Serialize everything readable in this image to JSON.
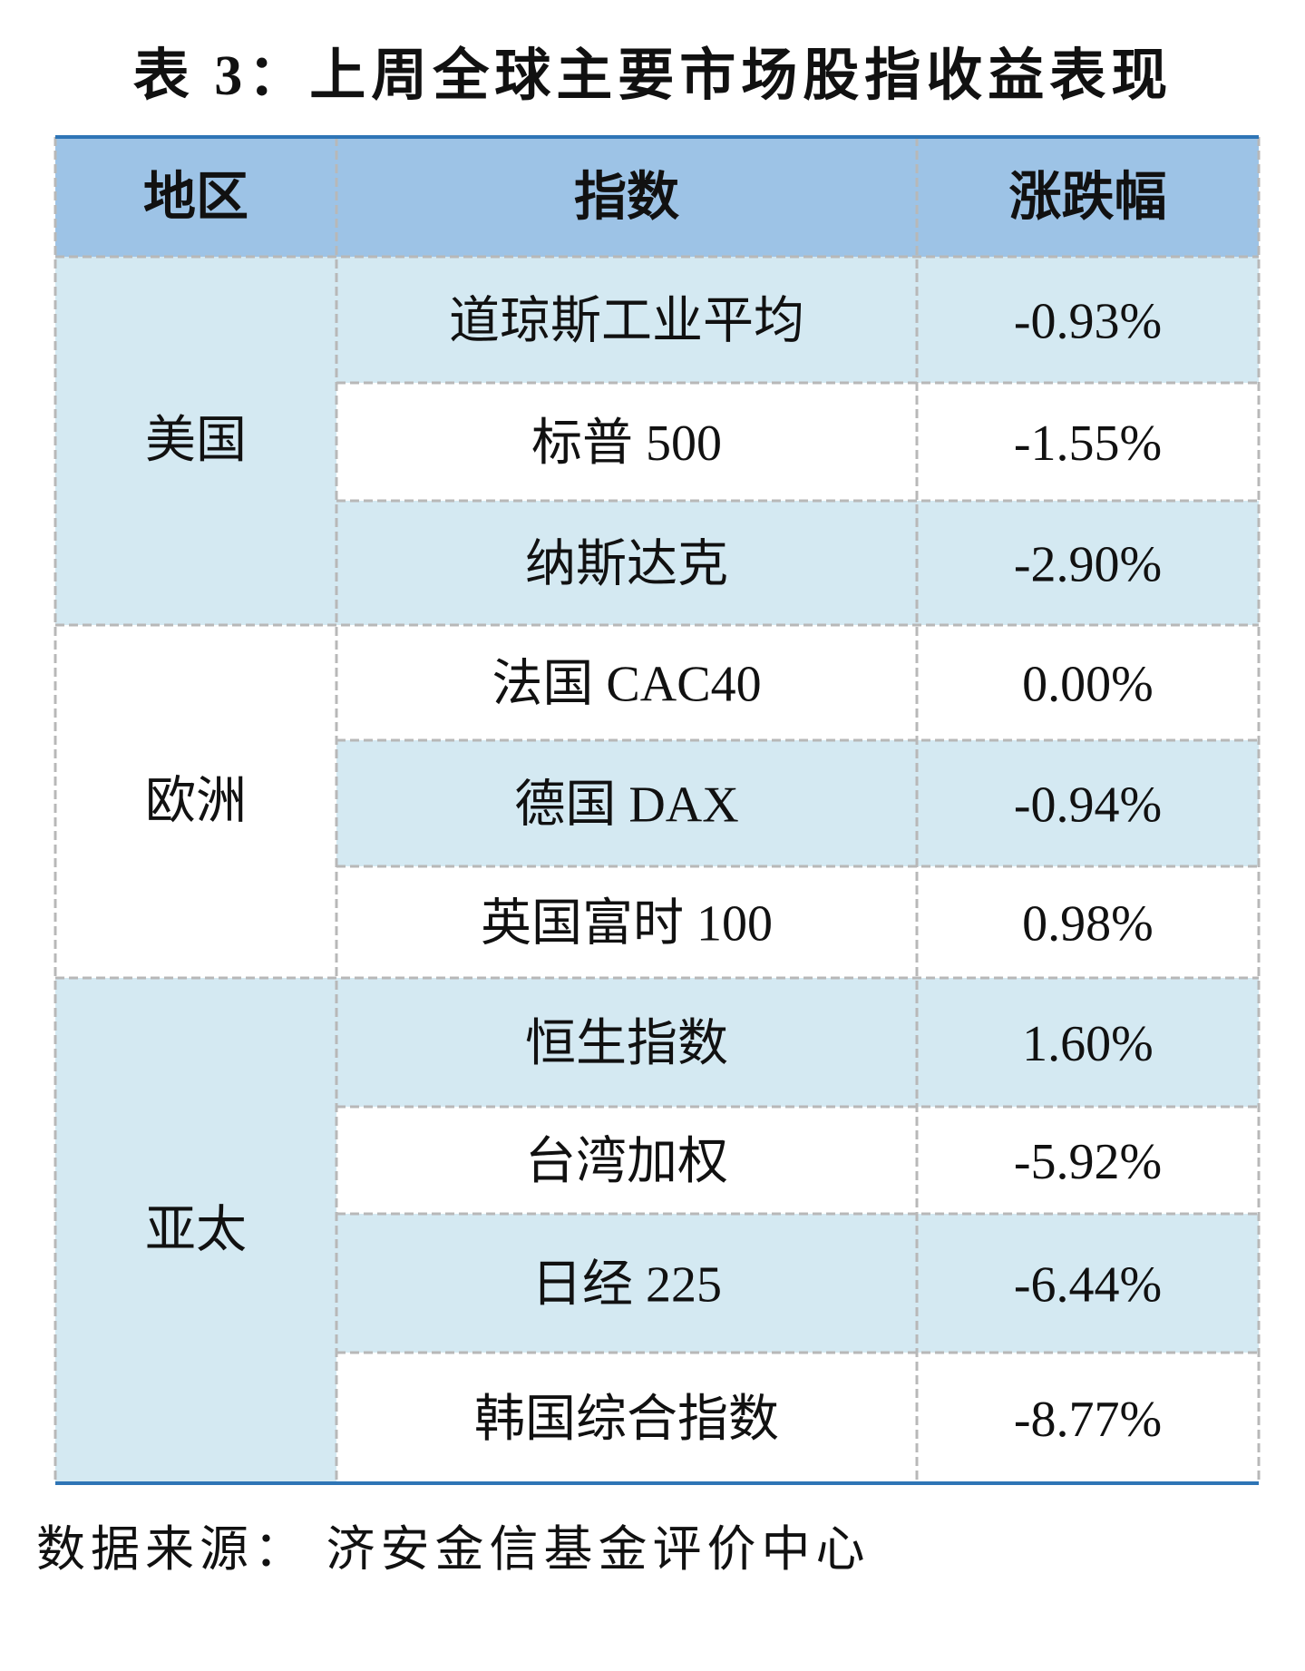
{
  "header": {
    "title": "表 3：上周全球主要市场股指收益表现"
  },
  "table": {
    "columns": [
      "地区",
      "指数",
      "涨跌幅"
    ],
    "groups": [
      {
        "region": "美国",
        "rows": [
          [
            "道琼斯工业平均",
            "-0.93%"
          ],
          [
            "标普 500",
            "-1.55%"
          ],
          [
            "纳斯达克",
            "-2.90%"
          ]
        ]
      },
      {
        "region": "欧洲",
        "rows": [
          [
            "法国 CAC40",
            "0.00%"
          ],
          [
            "德国 DAX",
            "-0.94%"
          ],
          [
            "英国富时 100",
            "0.98%"
          ]
        ]
      },
      {
        "region": "亚太",
        "rows": [
          [
            "恒生指数",
            "1.60%"
          ],
          [
            "台湾加权",
            "-5.92%"
          ],
          [
            "日经 225",
            "-6.44%"
          ],
          [
            "韩国综合指数",
            "-8.77%"
          ]
        ]
      }
    ]
  },
  "footer": {
    "source": "数据来源： 济安金信基金评价中心"
  }
}
